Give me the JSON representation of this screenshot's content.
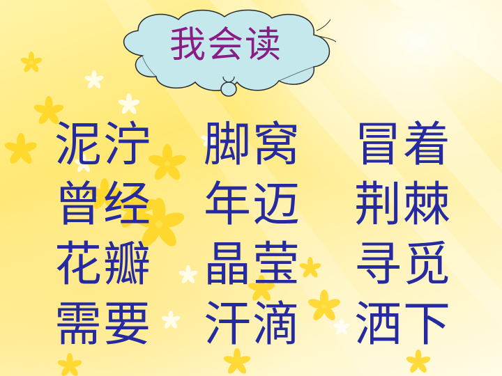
{
  "title": "我会读",
  "columns": [
    [
      "泥泞",
      "曾经",
      "花瓣",
      "需要"
    ],
    [
      "脚窝",
      "年迈",
      "晶莹",
      "汗滴"
    ],
    [
      "冒着",
      "荆棘",
      "寻觅",
      "洒下"
    ]
  ],
  "colors": {
    "title": "#8a1c86",
    "words": "#262aa0",
    "cloud_fill": "#c4e8ec",
    "background": "#ffe872"
  }
}
